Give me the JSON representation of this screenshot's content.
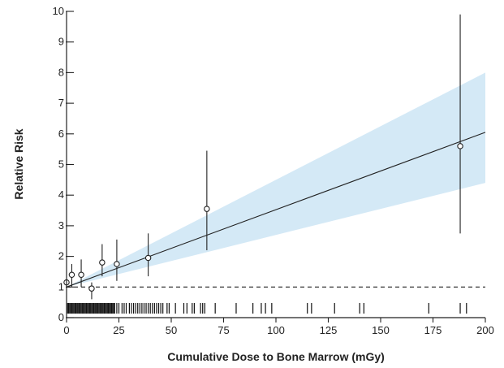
{
  "chart_data": {
    "type": "scatter",
    "xlabel": "Cumulative Dose to Bone Marrow (mGy)",
    "ylabel": "Relative Risk",
    "xlim": [
      0,
      200
    ],
    "ylim": [
      0,
      10
    ],
    "x_ticks": [
      0,
      25,
      50,
      75,
      100,
      125,
      150,
      175,
      200
    ],
    "y_ticks": [
      0,
      1,
      2,
      3,
      4,
      5,
      6,
      7,
      8,
      9,
      10
    ],
    "grid": false,
    "reference_line": {
      "y": 1,
      "style": "dashed"
    },
    "points": [
      {
        "x": 0,
        "y": 1.15,
        "lower": 1.15,
        "upper": 1.15
      },
      {
        "x": 2.5,
        "y": 1.4,
        "lower": 1.0,
        "upper": 1.75
      },
      {
        "x": 7,
        "y": 1.4,
        "lower": 1.0,
        "upper": 1.9
      },
      {
        "x": 12,
        "y": 0.95,
        "lower": 0.6,
        "upper": 1.15
      },
      {
        "x": 17,
        "y": 1.8,
        "lower": 1.35,
        "upper": 2.4
      },
      {
        "x": 24,
        "y": 1.75,
        "lower": 1.2,
        "upper": 2.55
      },
      {
        "x": 39,
        "y": 1.95,
        "lower": 1.35,
        "upper": 2.75
      },
      {
        "x": 67,
        "y": 3.55,
        "lower": 2.2,
        "upper": 5.45
      },
      {
        "x": 188,
        "y": 5.6,
        "lower": 2.75,
        "upper": 9.9
      }
    ],
    "fit_line": {
      "x": [
        0,
        200
      ],
      "y": [
        1.0,
        6.05
      ]
    },
    "confidence_band": {
      "x": [
        0,
        200
      ],
      "lower": [
        1.0,
        4.4
      ],
      "upper": [
        1.0,
        8.0
      ]
    },
    "rug": [
      0.5,
      1,
      1.5,
      2,
      2.5,
      3,
      3.5,
      4,
      4.5,
      5,
      5.5,
      6,
      6.5,
      7,
      7.5,
      8,
      8.5,
      9,
      9.5,
      10,
      10.5,
      11,
      11.5,
      12,
      12.5,
      13,
      13.5,
      14,
      14.5,
      15,
      15.5,
      16,
      16.5,
      17,
      17.5,
      18,
      18.5,
      19,
      19.5,
      20,
      20.5,
      21,
      21.5,
      22,
      22.5,
      23,
      24,
      25,
      26.5,
      27.5,
      28.5,
      30,
      31,
      32,
      33,
      34,
      35,
      36,
      37,
      38,
      39,
      40,
      41,
      42,
      43,
      44,
      45,
      46,
      48,
      49,
      52,
      56,
      57.5,
      60,
      61,
      64,
      65,
      66,
      71,
      81,
      89,
      93,
      95,
      98,
      115,
      117,
      128,
      140,
      142,
      173,
      188,
      191
    ]
  }
}
